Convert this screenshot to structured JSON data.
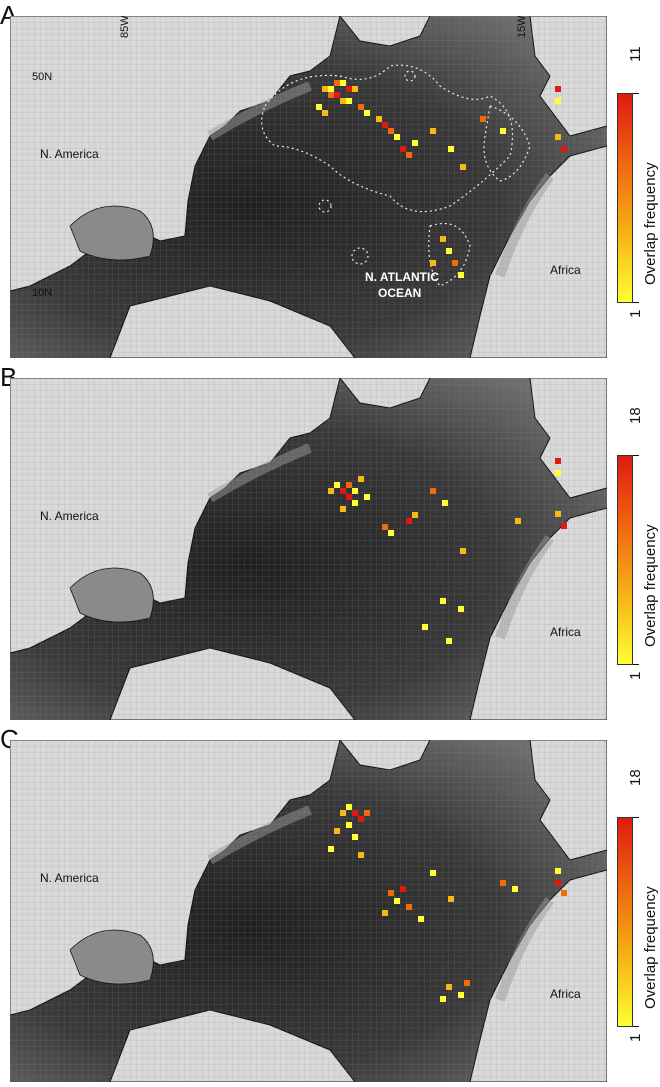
{
  "panels": [
    {
      "letter": "A",
      "continent_labels": [
        "N. America",
        "Africa"
      ],
      "ocean_label": [
        "N. ATLANTIC",
        "OCEAN"
      ],
      "lat_labels": [
        "50N",
        "10N"
      ],
      "lon_labels": [
        "85W",
        "15W"
      ],
      "colorbar": {
        "title": "Overlap frequency",
        "min": "1",
        "max": "11"
      },
      "has_ecoregion_outlines": true
    },
    {
      "letter": "B",
      "continent_labels": [
        "N. America",
        "Africa"
      ],
      "colorbar": {
        "title": "Overlap frequency",
        "min": "1",
        "max": "18"
      },
      "has_ecoregion_outlines": false
    },
    {
      "letter": "C",
      "continent_labels": [
        "N. America",
        "Africa"
      ],
      "colorbar": {
        "title": "Overlap frequency",
        "min": "1",
        "max": "18"
      },
      "has_ecoregion_outlines": false
    }
  ],
  "colors": {
    "land": "#d9d9d9",
    "ocean_deep": "#2b2b2b",
    "ocean_shelf": "#8a8a8a",
    "overlap_low": "#ffff33",
    "overlap_high": "#e01a10"
  }
}
